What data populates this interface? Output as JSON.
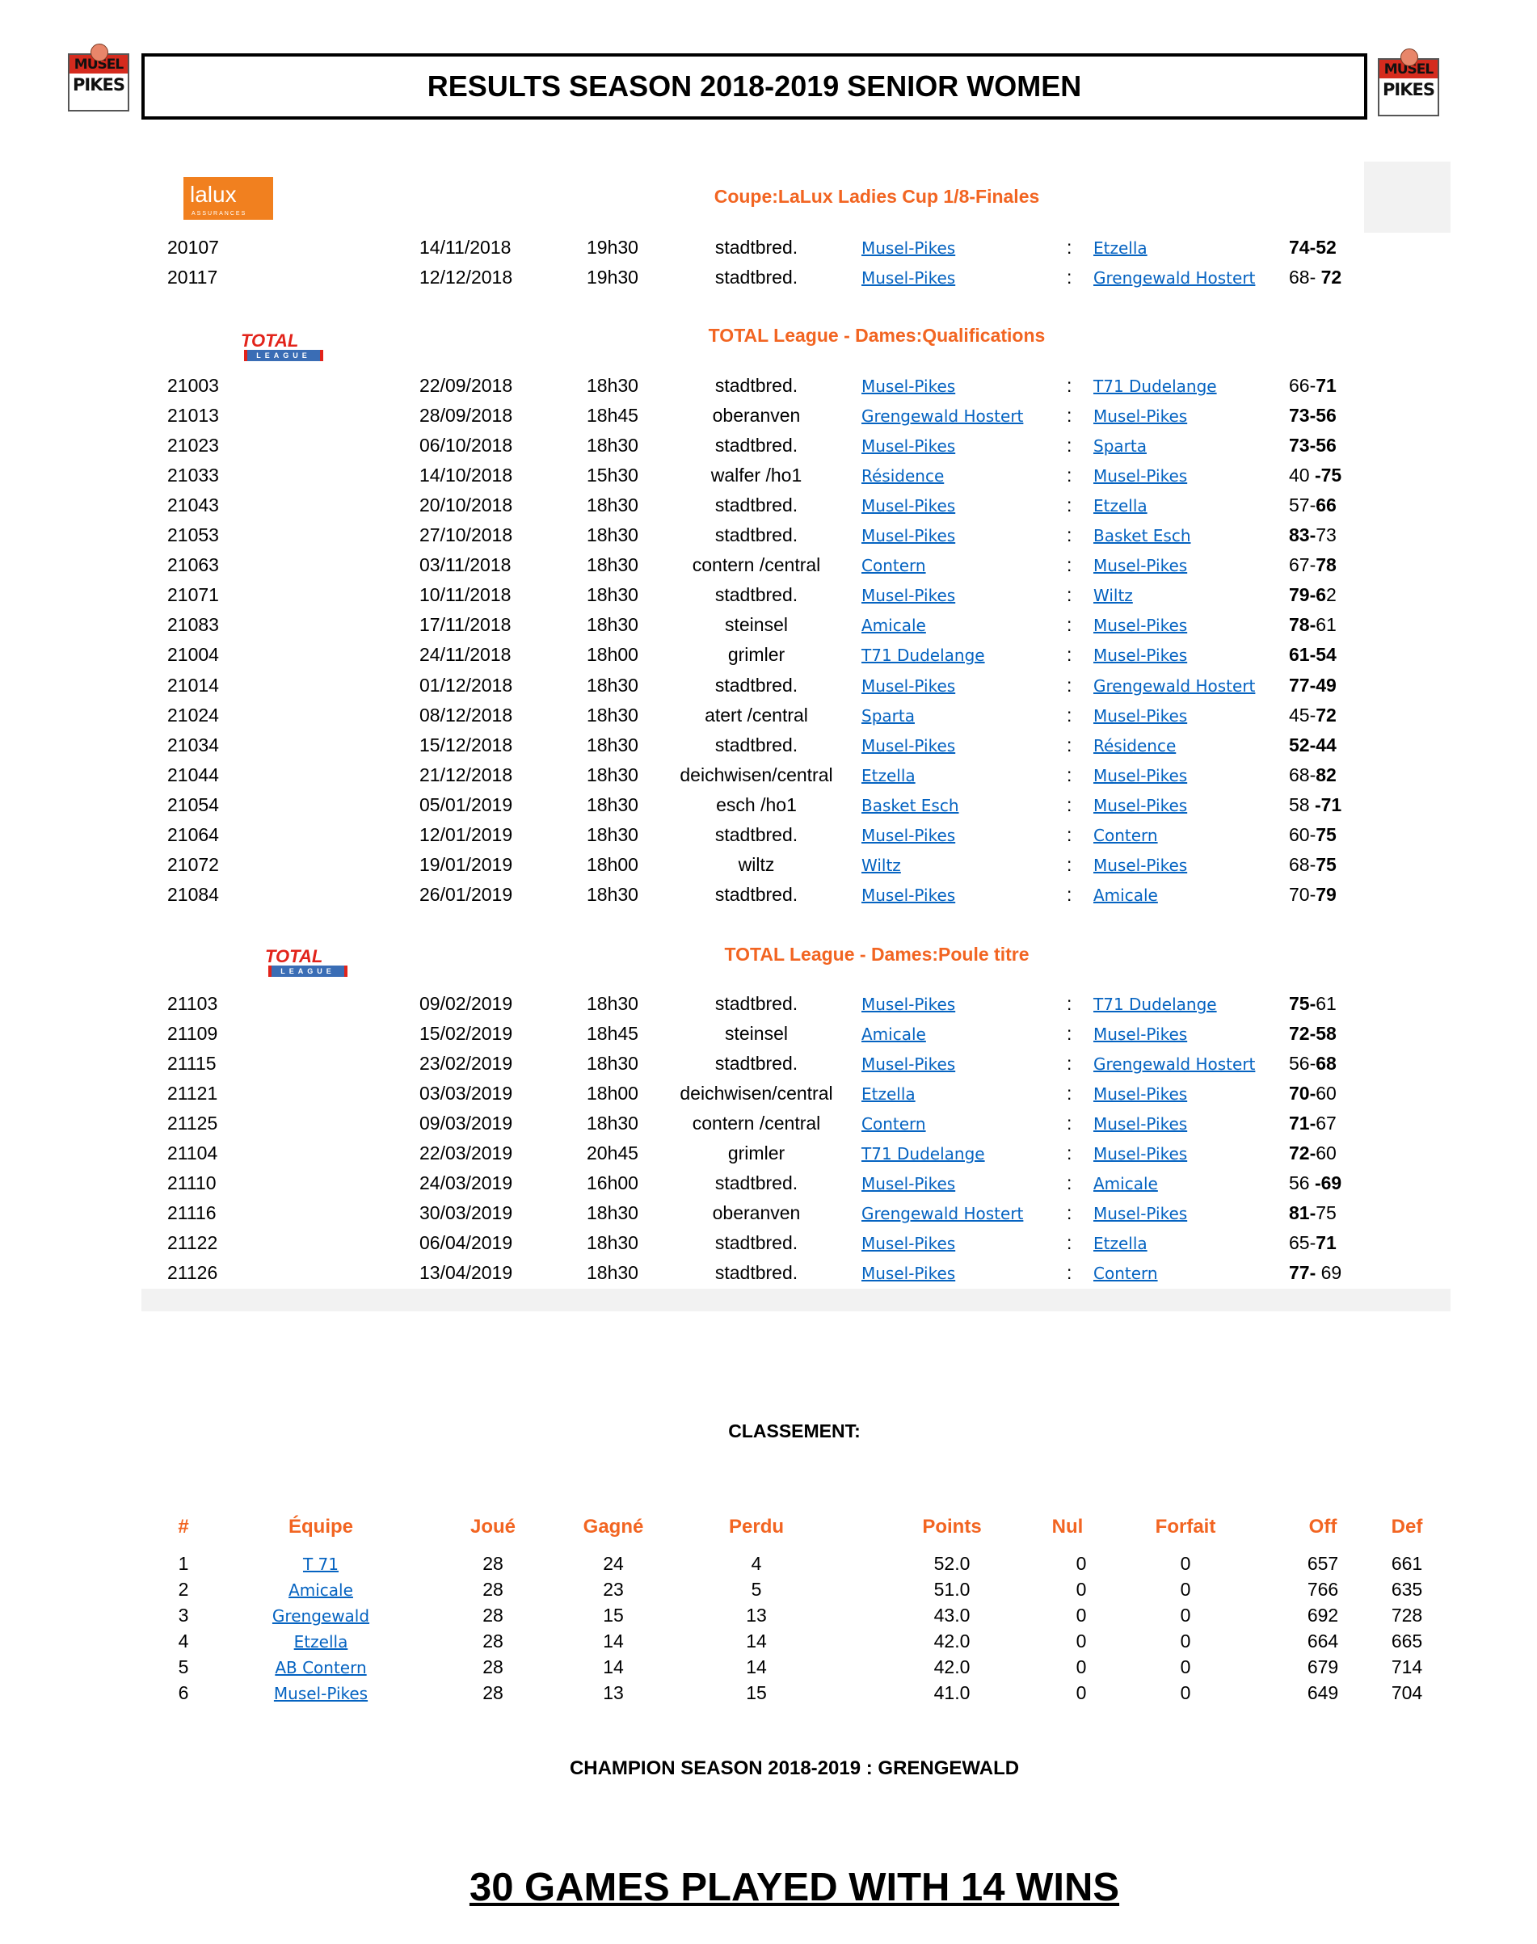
{
  "header": {
    "title": "RESULTS SEASON 2018-2019  SENIOR WOMEN",
    "logo_text_top": "MUSEL",
    "logo_text_bottom": "PIKES"
  },
  "sections": [
    {
      "logo": "lalux",
      "logo_text": "lalux",
      "logo_subtext": "ASSURANCES",
      "title": "Coupe:LaLux Ladies Cup 1/8-Finales",
      "games": [
        {
          "id": "20107",
          "date": "14/11/2018",
          "time": "19h30",
          "venue": "stadtbred.",
          "home": "Musel-Pikes",
          "away": "Etzella",
          "score": [
            [
              "74-52",
              true
            ]
          ]
        },
        {
          "id": "20117",
          "date": "12/12/2018",
          "time": "19h30",
          "venue": "stadtbred.",
          "home": "Musel-Pikes",
          "away": "Grengewald Hostert",
          "score": [
            [
              "68- ",
              false
            ],
            [
              "72",
              true
            ]
          ]
        }
      ]
    },
    {
      "logo": "total",
      "logo_text": "TOTAL",
      "logo_subtext": "LEAGUE",
      "title": "TOTAL League - Dames:Qualifications",
      "games": [
        {
          "id": "21003",
          "date": "22/09/2018",
          "time": "18h30",
          "venue": "stadtbred.",
          "home": "Musel-Pikes",
          "away": "T71 Dudelange",
          "score": [
            [
              "66-",
              false
            ],
            [
              "71",
              true
            ]
          ]
        },
        {
          "id": "21013",
          "date": "28/09/2018",
          "time": "18h45",
          "venue": "oberanven",
          "home": "Grengewald Hostert",
          "away": "Musel-Pikes",
          "score": [
            [
              "73-56",
              true
            ]
          ]
        },
        {
          "id": "21023",
          "date": "06/10/2018",
          "time": "18h30",
          "venue": "stadtbred.",
          "home": "Musel-Pikes",
          "away": "Sparta",
          "score": [
            [
              "73-56",
              true
            ]
          ]
        },
        {
          "id": "21033",
          "date": "14/10/2018",
          "time": "15h30",
          "venue": "walfer /ho1",
          "home": "Résidence",
          "away": "Musel-Pikes",
          "score": [
            [
              "40 ",
              false
            ],
            [
              "-75",
              true
            ]
          ]
        },
        {
          "id": "21043",
          "date": "20/10/2018",
          "time": "18h30",
          "venue": "stadtbred.",
          "home": "Musel-Pikes",
          "away": "Etzella",
          "score": [
            [
              "57-",
              false
            ],
            [
              "66",
              true
            ]
          ]
        },
        {
          "id": "21053",
          "date": "27/10/2018",
          "time": "18h30",
          "venue": "stadtbred.",
          "home": "Musel-Pikes",
          "away": "Basket Esch",
          "score": [
            [
              "83-",
              true
            ],
            [
              "73",
              false
            ]
          ]
        },
        {
          "id": "21063",
          "date": "03/11/2018",
          "time": "18h30",
          "venue": "contern /central",
          "home": "Contern",
          "away": "Musel-Pikes",
          "score": [
            [
              "67-",
              false
            ],
            [
              "78",
              true
            ]
          ]
        },
        {
          "id": "21071",
          "date": "10/11/2018",
          "time": "18h30",
          "venue": "stadtbred.",
          "home": "Musel-Pikes",
          "away": "Wiltz",
          "score": [
            [
              "79-6",
              true
            ],
            [
              "2",
              false
            ]
          ]
        },
        {
          "id": "21083",
          "date": "17/11/2018",
          "time": "18h30",
          "venue": "steinsel",
          "home": "Amicale",
          "away": "Musel-Pikes",
          "score": [
            [
              "78-",
              true
            ],
            [
              "61",
              false
            ]
          ]
        },
        {
          "id": "21004",
          "date": "24/11/2018",
          "time": "18h00",
          "venue": "grimler",
          "home": "T71 Dudelange",
          "away": "Musel-Pikes",
          "score": [
            [
              "61-54",
              true
            ]
          ]
        },
        {
          "id": "21014",
          "date": "01/12/2018",
          "time": "18h30",
          "venue": "stadtbred.",
          "home": "Musel-Pikes",
          "away": "Grengewald Hostert",
          "score": [
            [
              "77-49",
              true
            ]
          ]
        },
        {
          "id": "21024",
          "date": "08/12/2018",
          "time": "18h30",
          "venue": "atert /central",
          "home": "Sparta",
          "away": "Musel-Pikes",
          "score": [
            [
              "45-",
              false
            ],
            [
              "72",
              true
            ]
          ]
        },
        {
          "id": "21034",
          "date": "15/12/2018",
          "time": "18h30",
          "venue": "stadtbred.",
          "home": "Musel-Pikes",
          "away": "Résidence",
          "score": [
            [
              "52-44",
              true
            ]
          ]
        },
        {
          "id": "21044",
          "date": "21/12/2018",
          "time": "18h30",
          "venue": "deichwisen/central",
          "home": "Etzella",
          "away": "Musel-Pikes",
          "score": [
            [
              "68-",
              false
            ],
            [
              "82",
              true
            ]
          ]
        },
        {
          "id": "21054",
          "date": "05/01/2019",
          "time": "18h30",
          "venue": "esch /ho1",
          "home": "Basket Esch",
          "away": "Musel-Pikes",
          "score": [
            [
              "58 ",
              false
            ],
            [
              "-71",
              true
            ]
          ]
        },
        {
          "id": "21064",
          "date": "12/01/2019",
          "time": "18h30",
          "venue": "stadtbred.",
          "home": "Musel-Pikes",
          "away": "Contern",
          "score": [
            [
              "60-",
              false
            ],
            [
              "75",
              true
            ]
          ]
        },
        {
          "id": "21072",
          "date": "19/01/2019",
          "time": "18h00",
          "venue": "wiltz",
          "home": "Wiltz",
          "away": "Musel-Pikes",
          "score": [
            [
              "68-",
              false
            ],
            [
              "75",
              true
            ]
          ]
        },
        {
          "id": "21084",
          "date": "26/01/2019",
          "time": "18h30",
          "venue": "stadtbred.",
          "home": "Musel-Pikes",
          "away": "Amicale",
          "score": [
            [
              "70-",
              false
            ],
            [
              "79",
              true
            ]
          ]
        }
      ]
    },
    {
      "logo": "total",
      "logo_text": "TOTAL",
      "logo_subtext": "LEAGUE",
      "title": "TOTAL League - Dames:Poule titre",
      "games": [
        {
          "id": "21103",
          "date": "09/02/2019",
          "time": "18h30",
          "venue": "stadtbred.",
          "home": "Musel-Pikes",
          "away": "T71 Dudelange",
          "score": [
            [
              "75-",
              true
            ],
            [
              "61",
              false
            ]
          ]
        },
        {
          "id": "21109",
          "date": "15/02/2019",
          "time": "18h45",
          "venue": "steinsel",
          "home": "Amicale",
          "away": "Musel-Pikes",
          "score": [
            [
              "72-58",
              true
            ]
          ]
        },
        {
          "id": "21115",
          "date": "23/02/2019",
          "time": "18h30",
          "venue": "stadtbred.",
          "home": "Musel-Pikes",
          "away": "Grengewald Hostert",
          "score": [
            [
              "56-",
              false
            ],
            [
              "68",
              true
            ]
          ]
        },
        {
          "id": "21121",
          "date": "03/03/2019",
          "time": "18h00",
          "venue": "deichwisen/central",
          "home": "Etzella",
          "away": "Musel-Pikes",
          "score": [
            [
              "70-",
              true
            ],
            [
              "60",
              false
            ]
          ]
        },
        {
          "id": "21125",
          "date": "09/03/2019",
          "time": "18h30",
          "venue": "contern /central",
          "home": "Contern",
          "away": "Musel-Pikes",
          "score": [
            [
              "71-",
              true
            ],
            [
              "67",
              false
            ]
          ]
        },
        {
          "id": "21104",
          "date": "22/03/2019",
          "time": "20h45",
          "venue": "grimler",
          "home": "T71 Dudelange",
          "away": "Musel-Pikes",
          "score": [
            [
              "72-",
              true
            ],
            [
              "60",
              false
            ]
          ]
        },
        {
          "id": "21110",
          "date": "24/03/2019",
          "time": "16h00",
          "venue": "stadtbred.",
          "home": "Musel-Pikes",
          "away": "Amicale",
          "score": [
            [
              "56 ",
              false
            ],
            [
              "-69",
              true
            ]
          ]
        },
        {
          "id": "21116",
          "date": "30/03/2019",
          "time": "18h30",
          "venue": "oberanven",
          "home": "Grengewald Hostert",
          "away": "Musel-Pikes",
          "score": [
            [
              "81-",
              true
            ],
            [
              "75",
              false
            ]
          ]
        },
        {
          "id": "21122",
          "date": "06/04/2019",
          "time": "18h30",
          "venue": "stadtbred.",
          "home": "Musel-Pikes",
          "away": "Etzella",
          "score": [
            [
              "65-",
              false
            ],
            [
              "71",
              true
            ]
          ]
        },
        {
          "id": "21126",
          "date": "13/04/2019",
          "time": "18h30",
          "venue": "stadtbred.",
          "home": "Musel-Pikes",
          "away": "Contern",
          "score": [
            [
              "77-",
              true
            ],
            [
              " 69",
              false
            ]
          ]
        }
      ]
    }
  ],
  "separator": ":",
  "standings": {
    "title": "CLASSEMENT:",
    "columns": [
      "#",
      "Équipe",
      "Joué",
      "Gagné",
      "Perdu",
      "Points",
      "Nul",
      "Forfait",
      "Off",
      "Def"
    ],
    "rows": [
      [
        "1",
        "T 71",
        "28",
        "24",
        "4",
        "52.0",
        "0",
        "0",
        "657",
        "661"
      ],
      [
        "2",
        "Amicale",
        "28",
        "23",
        "5",
        "51.0",
        "0",
        "0",
        "766",
        "635"
      ],
      [
        "3",
        "Grengewald",
        "28",
        "15",
        "13",
        "43.0",
        "0",
        "0",
        "692",
        "728"
      ],
      [
        "4",
        "Etzella",
        "28",
        "14",
        "14",
        "42.0",
        "0",
        "0",
        "664",
        "665"
      ],
      [
        "5",
        "AB Contern",
        "28",
        "14",
        "14",
        "42.0",
        "0",
        "0",
        "679",
        "714"
      ],
      [
        "6",
        "Musel-Pikes",
        "28",
        "13",
        "15",
        "41.0",
        "0",
        "0",
        "649",
        "704"
      ]
    ]
  },
  "champion": "CHAMPION SEASON 2018-2019 : GRENGEWALD",
  "summary": "30 GAMES PLAYED WITH 14 WINS",
  "colors": {
    "accent": "#f26522",
    "link": "#0563c1",
    "lalux": "#f1801f",
    "total_red": "#e2231a",
    "total_blue": "#3a6db5"
  }
}
